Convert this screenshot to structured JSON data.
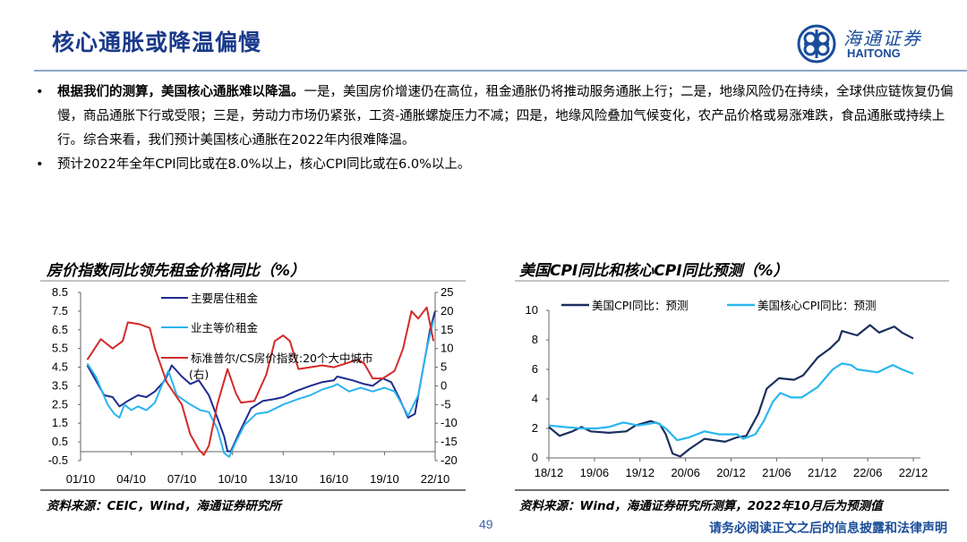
{
  "header": {
    "title": "核心通胀或降温偏慢",
    "logo_cn": "海通证券",
    "logo_en": "HAITONG"
  },
  "bullets": [
    {
      "bold": "根据我们的测算，美国核心通胀难以降温。",
      "text": "一是，美国房价增速仍在高位，租金通胀仍将推动服务通胀上行；二是，地缘风险仍在持续，全球供应链恢复仍偏慢，商品通胀下行或受限；三是，劳动力市场仍紧张，工资-通胀螺旋压力不减；四是，地缘风险叠加气候变化，农产品价格或易涨难跌，食品通胀或持续上行。综合来看，我们预计美国核心通胀在2022年内很难降温。"
    },
    {
      "bold": "",
      "text": "预计2022年全年CPI同比或在8.0%以上，核心CPI同比或在6.0%以上。"
    }
  ],
  "colors": {
    "dark_blue": "#1f2b8f",
    "light_blue": "#2ab4ee",
    "red": "#d42a2a",
    "navy": "#1b2f5e",
    "cyan": "#29b6f0"
  },
  "chart_data": [
    {
      "type": "line",
      "title": "房价指数同比领先租金价格同比（%）",
      "source": "资料来源：CEIC，Wind，海通证券研究所",
      "x_unit": "years since 2001/10",
      "xticks": [
        "01/10",
        "04/10",
        "07/10",
        "10/10",
        "13/10",
        "16/10",
        "19/10",
        "22/10"
      ],
      "xlim": [
        0,
        21
      ],
      "ylim_left": [
        -0.5,
        8.5
      ],
      "yticks_left": [
        "8.5",
        "7.5",
        "6.5",
        "5.5",
        "4.5",
        "3.5",
        "2.5",
        "1.5",
        "0.5",
        "-0.5"
      ],
      "ylim_right": [
        -20,
        25
      ],
      "yticks_right": [
        "25",
        "20",
        "15",
        "10",
        "5",
        "0",
        "-5",
        "-10",
        "-15",
        "-20"
      ],
      "legend_note": "(右)",
      "series": [
        {
          "name": "主要居住租金",
          "axis": "left",
          "color": "#1f2b8f",
          "points": [
            [
              0.4,
              4.6
            ],
            [
              0.9,
              3.8
            ],
            [
              1.4,
              3.0
            ],
            [
              1.9,
              2.9
            ],
            [
              2.3,
              2.4
            ],
            [
              2.8,
              2.7
            ],
            [
              3.4,
              3.0
            ],
            [
              3.9,
              2.9
            ],
            [
              4.4,
              3.2
            ],
            [
              5.0,
              3.8
            ],
            [
              5.4,
              4.6
            ],
            [
              6.0,
              4.0
            ],
            [
              6.5,
              3.6
            ],
            [
              7.0,
              3.8
            ],
            [
              7.6,
              3.0
            ],
            [
              8.1,
              1.8
            ],
            [
              8.5,
              0.8
            ],
            [
              8.7,
              0.0
            ],
            [
              8.9,
              0.0
            ],
            [
              9.4,
              1.0
            ],
            [
              10.1,
              2.3
            ],
            [
              10.8,
              2.7
            ],
            [
              11.5,
              2.8
            ],
            [
              12.0,
              2.9
            ],
            [
              12.7,
              3.2
            ],
            [
              13.6,
              3.5
            ],
            [
              14.3,
              3.7
            ],
            [
              15.0,
              3.8
            ],
            [
              15.2,
              4.0
            ],
            [
              16.1,
              3.8
            ],
            [
              16.8,
              3.6
            ],
            [
              17.3,
              3.5
            ],
            [
              17.9,
              3.9
            ],
            [
              18.4,
              3.7
            ],
            [
              18.9,
              2.8
            ],
            [
              19.4,
              1.8
            ],
            [
              19.8,
              2.0
            ],
            [
              20.3,
              4.5
            ],
            [
              20.7,
              6.5
            ],
            [
              21.0,
              7.5
            ]
          ]
        },
        {
          "name": "业主等价租金",
          "axis": "left",
          "color": "#2ab4ee",
          "points": [
            [
              0.4,
              4.7
            ],
            [
              0.9,
              4.0
            ],
            [
              1.6,
              2.5
            ],
            [
              2.0,
              2.0
            ],
            [
              2.3,
              1.8
            ],
            [
              2.6,
              2.5
            ],
            [
              3.0,
              2.2
            ],
            [
              3.4,
              2.4
            ],
            [
              3.9,
              2.2
            ],
            [
              4.4,
              2.6
            ],
            [
              4.8,
              3.5
            ],
            [
              5.2,
              4.3
            ],
            [
              5.7,
              3.0
            ],
            [
              6.5,
              2.5
            ],
            [
              7.1,
              2.2
            ],
            [
              7.6,
              2.1
            ],
            [
              8.1,
              1.2
            ],
            [
              8.5,
              -0.1
            ],
            [
              8.8,
              -0.3
            ],
            [
              9.2,
              0.5
            ],
            [
              9.7,
              1.4
            ],
            [
              10.4,
              2.0
            ],
            [
              11.1,
              2.1
            ],
            [
              12.0,
              2.5
            ],
            [
              12.9,
              2.8
            ],
            [
              13.6,
              3.0
            ],
            [
              14.3,
              3.3
            ],
            [
              15.0,
              3.5
            ],
            [
              15.2,
              3.6
            ],
            [
              15.9,
              3.2
            ],
            [
              16.6,
              3.4
            ],
            [
              17.3,
              3.2
            ],
            [
              18.0,
              3.4
            ],
            [
              18.6,
              3.2
            ],
            [
              19.1,
              2.4
            ],
            [
              19.4,
              1.9
            ],
            [
              20.0,
              3.0
            ],
            [
              20.5,
              5.5
            ],
            [
              20.9,
              7.0
            ]
          ]
        },
        {
          "name": "标准普尔/CS房价指数:20个大中城市",
          "axis": "right",
          "color": "#d42a2a",
          "points": [
            [
              0.4,
              7
            ],
            [
              1.2,
              12.5
            ],
            [
              1.9,
              10
            ],
            [
              2.5,
              12
            ],
            [
              2.8,
              17
            ],
            [
              3.5,
              16.5
            ],
            [
              4.1,
              15.5
            ],
            [
              4.4,
              10
            ],
            [
              5.1,
              1
            ],
            [
              6.0,
              -5
            ],
            [
              6.5,
              -13
            ],
            [
              7.0,
              -17
            ],
            [
              7.3,
              -18.5
            ],
            [
              7.6,
              -16
            ],
            [
              8.1,
              -5
            ],
            [
              8.7,
              4.5
            ],
            [
              9.2,
              -2
            ],
            [
              9.5,
              -4.5
            ],
            [
              10.3,
              -4
            ],
            [
              11.0,
              3
            ],
            [
              11.5,
              12
            ],
            [
              12.0,
              13.5
            ],
            [
              12.4,
              12
            ],
            [
              12.9,
              4.5
            ],
            [
              13.6,
              5
            ],
            [
              14.3,
              5.5
            ],
            [
              15.0,
              5
            ],
            [
              15.7,
              6
            ],
            [
              16.4,
              7
            ],
            [
              16.8,
              6
            ],
            [
              17.3,
              2
            ],
            [
              17.9,
              2
            ],
            [
              18.6,
              4
            ],
            [
              19.1,
              10
            ],
            [
              19.6,
              20
            ],
            [
              20.0,
              18
            ],
            [
              20.5,
              21
            ],
            [
              20.9,
              12
            ]
          ]
        }
      ]
    },
    {
      "type": "line",
      "title": "美国CPI同比和核心CPI同比预测（%）",
      "source": "资料来源：Wind，海通证券研究所测算，2022年10月后为预测值",
      "x_unit": "months since 2018/12",
      "xticks": [
        "18/12",
        "19/06",
        "19/12",
        "20/06",
        "20/12",
        "21/06",
        "21/12",
        "22/06",
        "22/12"
      ],
      "xlim": [
        0,
        48
      ],
      "ylim": [
        0,
        10
      ],
      "yticks": [
        "10",
        "8",
        "6",
        "4",
        "2",
        "0"
      ],
      "series": [
        {
          "name": "美国CPI同比：预测",
          "color": "#1b2f5e",
          "points": [
            [
              0,
              2.1
            ],
            [
              1.4,
              1.5
            ],
            [
              3.1,
              1.8
            ],
            [
              4.3,
              2.1
            ],
            [
              5.5,
              1.8
            ],
            [
              7.9,
              1.7
            ],
            [
              10.2,
              1.8
            ],
            [
              11.4,
              2.2
            ],
            [
              13.4,
              2.5
            ],
            [
              14.6,
              2.3
            ],
            [
              15.4,
              1.6
            ],
            [
              16.3,
              0.3
            ],
            [
              17.3,
              0.1
            ],
            [
              18.5,
              0.6
            ],
            [
              20.5,
              1.3
            ],
            [
              23.2,
              1.1
            ],
            [
              24.8,
              1.4
            ],
            [
              26,
              1.5
            ],
            [
              27.6,
              3.0
            ],
            [
              28.7,
              4.7
            ],
            [
              30.3,
              5.4
            ],
            [
              32.3,
              5.3
            ],
            [
              33.5,
              5.6
            ],
            [
              35.4,
              6.8
            ],
            [
              37,
              7.4
            ],
            [
              38.2,
              8.0
            ],
            [
              38.6,
              8.6
            ],
            [
              40.6,
              8.3
            ],
            [
              42.3,
              9.0
            ],
            [
              43.5,
              8.5
            ],
            [
              45.5,
              8.9
            ],
            [
              46.5,
              8.5
            ],
            [
              48,
              8.1
            ]
          ]
        },
        {
          "name": "美国核心CPI同比：预测",
          "color": "#29b6f0",
          "points": [
            [
              0,
              2.2
            ],
            [
              2,
              2.1
            ],
            [
              4.3,
              2.0
            ],
            [
              6.3,
              2.0
            ],
            [
              7.9,
              2.1
            ],
            [
              9.8,
              2.4
            ],
            [
              11.8,
              2.2
            ],
            [
              14.2,
              2.4
            ],
            [
              15.4,
              2.0
            ],
            [
              16.9,
              1.2
            ],
            [
              18.5,
              1.4
            ],
            [
              20.5,
              1.8
            ],
            [
              22.4,
              1.6
            ],
            [
              24.8,
              1.6
            ],
            [
              25.6,
              1.3
            ],
            [
              27.2,
              1.6
            ],
            [
              28.3,
              2.5
            ],
            [
              29.5,
              3.8
            ],
            [
              30.5,
              4.4
            ],
            [
              31.9,
              4.1
            ],
            [
              33.3,
              4.1
            ],
            [
              35.4,
              4.8
            ],
            [
              37.4,
              6.0
            ],
            [
              38.6,
              6.4
            ],
            [
              39.8,
              6.3
            ],
            [
              40.6,
              6.0
            ],
            [
              43.3,
              5.8
            ],
            [
              45.3,
              6.3
            ],
            [
              46.5,
              6.0
            ],
            [
              48,
              5.7
            ]
          ]
        }
      ]
    }
  ],
  "footer": {
    "page": "49",
    "disclaimer": "请务必阅读正文之后的信息披露和法律声明"
  }
}
